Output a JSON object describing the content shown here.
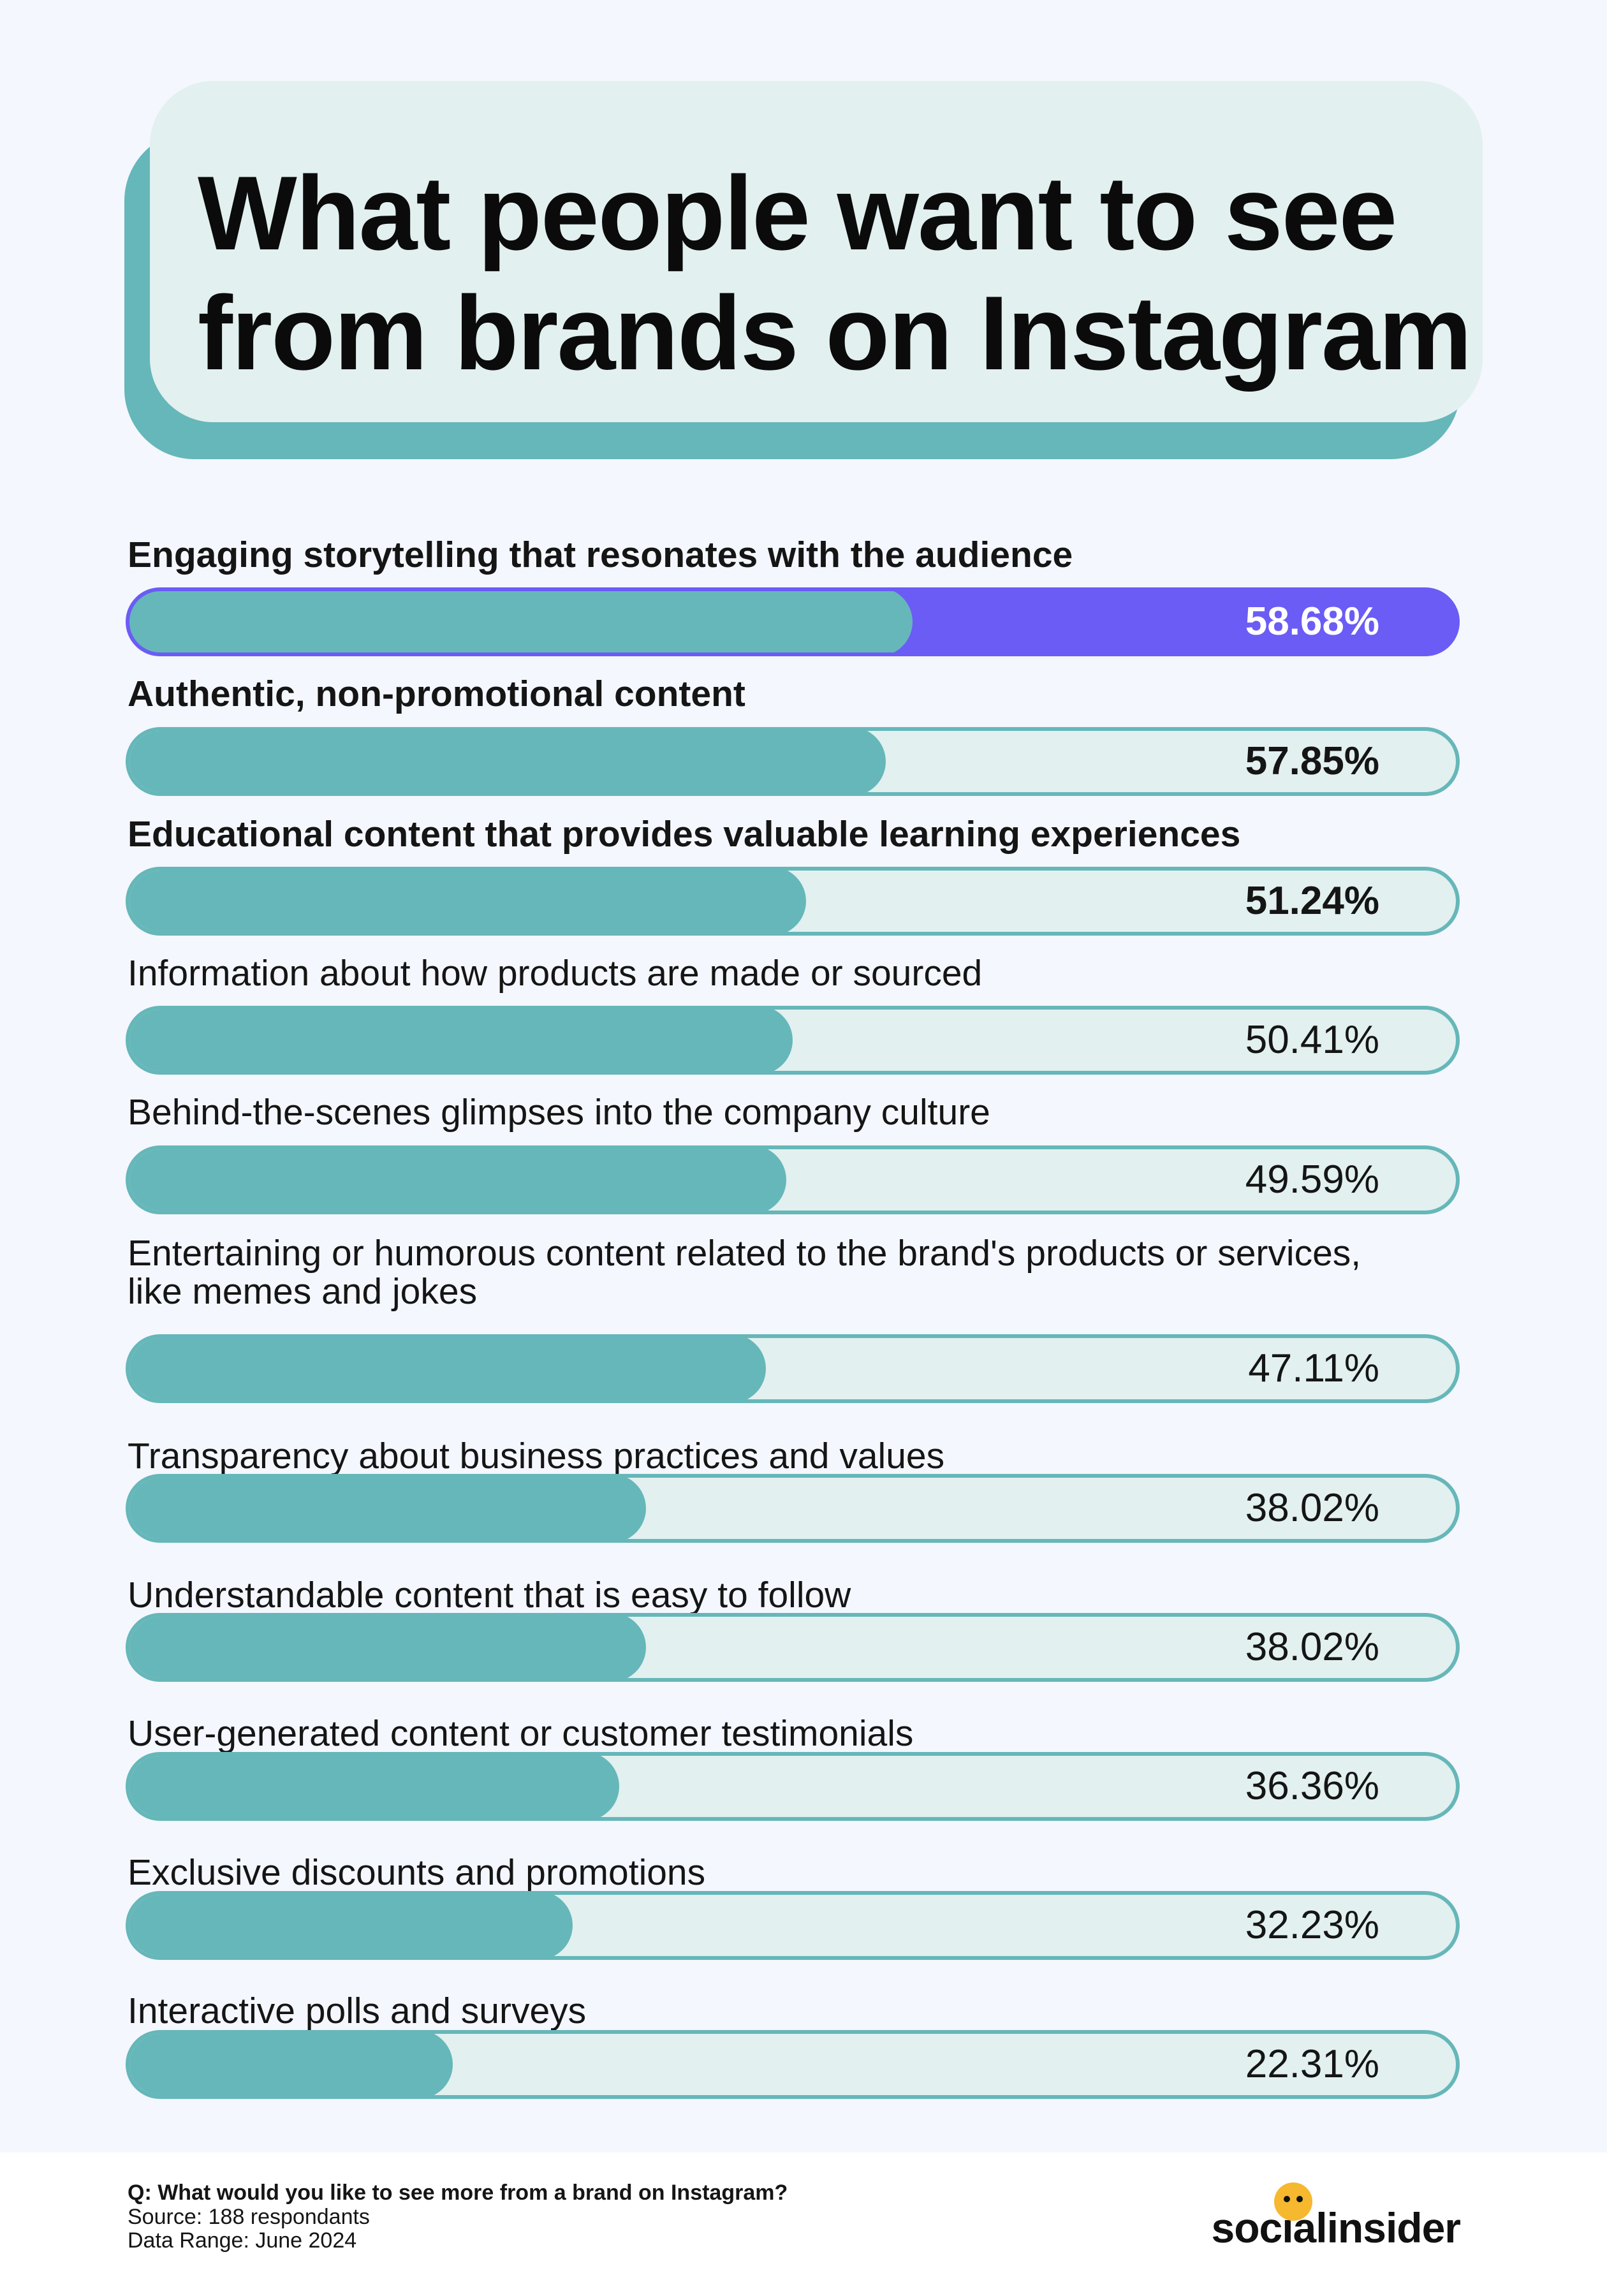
{
  "title": "What people want to see\nfrom brands on Instagram",
  "chart_data": {
    "type": "bar",
    "orientation": "horizontal",
    "categories": [
      "Engaging storytelling that resonates with the audience",
      "Authentic, non-promotional content",
      "Educational content that provides valuable learning experiences",
      "Information about how products are made or sourced",
      "Behind-the-scenes glimpses into the company culture",
      "Entertaining or humorous content related to the brand's products or services, like memes and jokes",
      "Transparency about business practices and values",
      "Understandable content that is easy to follow",
      "User-generated content or customer testimonials",
      "Exclusive discounts and promotions",
      "Interactive polls and surveys"
    ],
    "values": [
      58.68,
      57.85,
      51.24,
      50.41,
      49.59,
      47.11,
      38.02,
      38.02,
      36.36,
      32.23,
      22.31
    ],
    "value_labels": [
      "58.68%",
      "57.85%",
      "51.24%",
      "50.41%",
      "49.59%",
      "47.11%",
      "38.02%",
      "38.02%",
      "36.36%",
      "32.23%",
      "22.31%"
    ],
    "bold_rows": [
      0,
      1,
      2
    ],
    "highlight_row": 0,
    "xlim": [
      0,
      100
    ],
    "grid": false,
    "colors": {
      "fill": "#66b7b9",
      "track": "#e2f0ef",
      "highlight": "#6b5cf5"
    }
  },
  "footer": {
    "question": "Q: What would you like to see more from a brand on Instagram?",
    "source": "Source: 188 respondants",
    "date_range": "Data Range: June 2024"
  },
  "logo": {
    "text": "socialinsider",
    "accent_color": "#f5b82e"
  }
}
